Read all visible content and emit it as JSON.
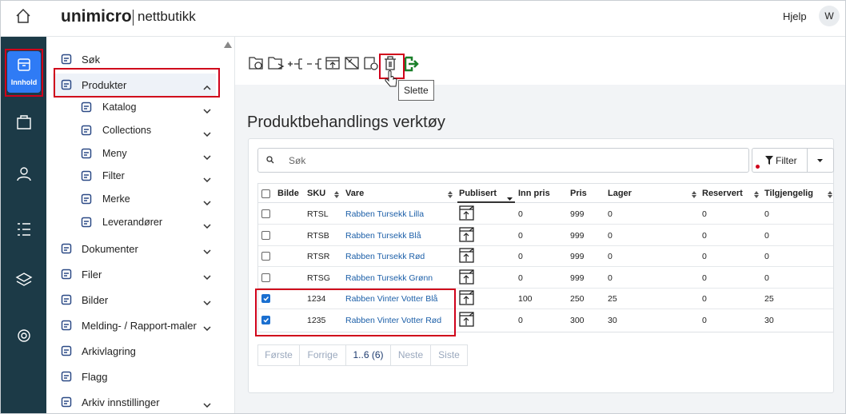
{
  "header": {
    "brand": "unimicro",
    "brand_suffix": "nettbutikk",
    "help": "Hjelp",
    "avatar": "W"
  },
  "rail": {
    "active_label": "Innhold"
  },
  "nav": {
    "items": [
      {
        "label": "Søk"
      },
      {
        "label": "Produkter",
        "open": true,
        "children": [
          {
            "label": "Katalog"
          },
          {
            "label": "Collections"
          },
          {
            "label": "Meny"
          },
          {
            "label": "Filter"
          },
          {
            "label": "Merke"
          },
          {
            "label": "Leverandører"
          }
        ]
      },
      {
        "label": "Dokumenter",
        "expandable": true
      },
      {
        "label": "Filer",
        "expandable": true
      },
      {
        "label": "Bilder",
        "expandable": true
      },
      {
        "label": "Melding- / Rapport-maler",
        "expandable": true
      },
      {
        "label": "Arkivlagring"
      },
      {
        "label": "Flagg"
      },
      {
        "label": "Arkiv innstillinger",
        "expandable": true
      }
    ]
  },
  "toolbar": {
    "tooltip": "Slette"
  },
  "main": {
    "title": "Produktbehandlings verktøy",
    "search_placeholder": "Søk",
    "filter_label": "Filter",
    "columns": [
      "Bilde",
      "SKU",
      "Vare",
      "Publisert",
      "Inn pris",
      "Pris",
      "Lager",
      "Reservert",
      "Tilgjengelig"
    ],
    "rows": [
      {
        "sku": "RTSL",
        "vare": "Rabben Tursekk Lilla",
        "inn_pris": 0,
        "pris": 999,
        "lager": 0,
        "reservert": 0,
        "tilgjengelig": 0,
        "selected": false
      },
      {
        "sku": "RTSB",
        "vare": "Rabben Tursekk Blå",
        "inn_pris": 0,
        "pris": 999,
        "lager": 0,
        "reservert": 0,
        "tilgjengelig": 0,
        "selected": false
      },
      {
        "sku": "RTSR",
        "vare": "Rabben Tursekk Rød",
        "inn_pris": 0,
        "pris": 999,
        "lager": 0,
        "reservert": 0,
        "tilgjengelig": 0,
        "selected": false
      },
      {
        "sku": "RTSG",
        "vare": "Rabben Tursekk Grønn",
        "inn_pris": 0,
        "pris": 999,
        "lager": 0,
        "reservert": 0,
        "tilgjengelig": 0,
        "selected": false
      },
      {
        "sku": "1234",
        "vare": "Rabben Vinter Votter Blå",
        "inn_pris": 100,
        "pris": 250,
        "lager": 25,
        "reservert": 0,
        "tilgjengelig": 25,
        "selected": true
      },
      {
        "sku": "1235",
        "vare": "Rabben Vinter Votter Rød",
        "inn_pris": 0,
        "pris": 300,
        "lager": 30,
        "reservert": 0,
        "tilgjengelig": 30,
        "selected": true
      }
    ],
    "pagination": [
      "Første",
      "Forrige",
      "1..6 (6)",
      "Neste",
      "Siste"
    ]
  }
}
